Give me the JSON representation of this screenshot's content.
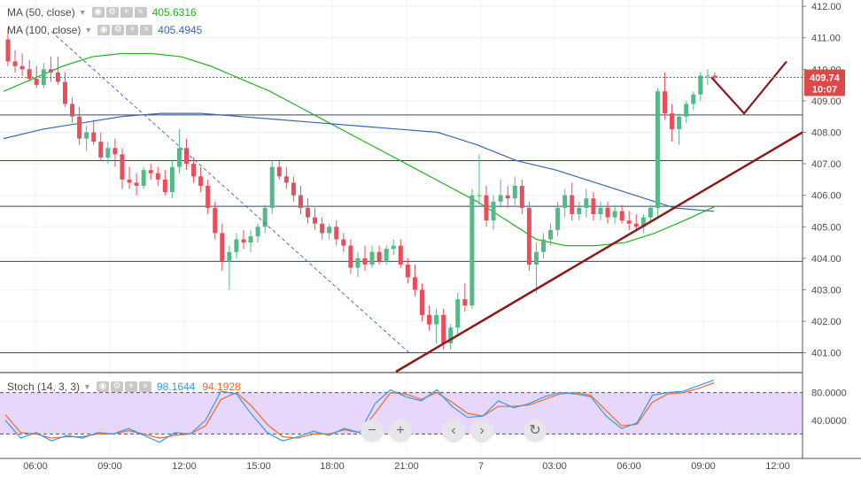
{
  "legends": {
    "ma50": {
      "label": "MA (50, close)",
      "value": "405.6316",
      "color": "#22b222"
    },
    "ma100": {
      "label": "MA (100, close)",
      "value": "405.4945",
      "color": "#3a66b0"
    },
    "stoch": {
      "label": "Stoch (14, 3, 3)",
      "k_value": "98.1644",
      "d_value": "94.1928",
      "k_color": "#3399ee",
      "d_color": "#f06a2a"
    }
  },
  "current_price": {
    "value": "409.74",
    "countdown": "10:07",
    "color": "#e04848"
  },
  "colors": {
    "up": "#53b987",
    "down": "#eb4d5c",
    "stoch_band": "#e7d7fb",
    "trend": "#8b1a1a"
  },
  "navigation": {
    "zoom_out_icon": "minus-icon",
    "zoom_in_icon": "plus-icon",
    "scroll_left_icon": "chevron-left-icon",
    "scroll_right_icon": "chevron-right-icon",
    "reset_icon": "reset-icon"
  },
  "chart_data": {
    "type": "candlestick",
    "price_axis": {
      "ylim": [
        400.4,
        412.2
      ],
      "ticks": [
        "401.00",
        "402.00",
        "403.00",
        "404.00",
        "405.00",
        "406.00",
        "407.00",
        "408.00",
        "409.00",
        "410.00",
        "411.00",
        "412.00"
      ]
    },
    "stoch_axis": {
      "ylim": [
        0,
        100
      ],
      "ticks": [
        "40.0000",
        "80.0000"
      ],
      "upper_band": 80,
      "lower_band": 20
    },
    "time_axis": {
      "ticks": [
        "06:00",
        "09:00",
        "12:00",
        "15:00",
        "18:00",
        "21:00",
        "7",
        "03:00",
        "06:00",
        "09:00",
        "12:00"
      ]
    },
    "horizontal_levels": [
      408.55,
      407.1,
      405.65,
      403.9,
      401.0
    ],
    "candles": [
      [
        410.95,
        411.3,
        410.1,
        410.25
      ],
      [
        410.25,
        410.6,
        409.9,
        410.1
      ],
      [
        410.1,
        410.5,
        409.8,
        410.0
      ],
      [
        410.0,
        410.3,
        409.6,
        409.7
      ],
      [
        409.7,
        410.1,
        409.4,
        409.5
      ],
      [
        409.5,
        410.2,
        409.4,
        410.0
      ],
      [
        410.0,
        410.4,
        409.6,
        409.9
      ],
      [
        409.9,
        410.4,
        409.5,
        409.6
      ],
      [
        409.6,
        409.9,
        408.8,
        408.9
      ],
      [
        408.9,
        409.1,
        408.3,
        408.5
      ],
      [
        408.5,
        408.8,
        407.6,
        407.8
      ],
      [
        407.8,
        408.2,
        407.4,
        408.0
      ],
      [
        408.0,
        408.4,
        407.6,
        407.7
      ],
      [
        407.7,
        408.0,
        407.1,
        407.2
      ],
      [
        407.2,
        407.7,
        407.0,
        407.5
      ],
      [
        407.5,
        407.8,
        406.9,
        407.3
      ],
      [
        407.3,
        407.5,
        406.2,
        406.5
      ],
      [
        406.5,
        406.9,
        406.2,
        406.4
      ],
      [
        406.4,
        406.7,
        406.0,
        406.3
      ],
      [
        406.3,
        406.9,
        406.2,
        406.8
      ],
      [
        406.8,
        407.0,
        406.5,
        406.7
      ],
      [
        406.7,
        406.9,
        406.3,
        406.5
      ],
      [
        406.5,
        406.8,
        406.0,
        406.1
      ],
      [
        406.1,
        407.1,
        405.9,
        406.9
      ],
      [
        406.9,
        408.1,
        406.7,
        407.5
      ],
      [
        407.5,
        407.8,
        406.8,
        407.0
      ],
      [
        407.0,
        407.2,
        406.4,
        406.6
      ],
      [
        406.6,
        406.9,
        406.1,
        406.3
      ],
      [
        406.3,
        406.5,
        405.4,
        405.6
      ],
      [
        405.6,
        405.8,
        404.6,
        404.8
      ],
      [
        404.8,
        405.1,
        403.6,
        403.9
      ],
      [
        403.9,
        404.4,
        403.0,
        404.2
      ],
      [
        404.2,
        404.8,
        404.0,
        404.6
      ],
      [
        404.6,
        404.9,
        404.3,
        404.5
      ],
      [
        404.5,
        404.9,
        404.2,
        404.7
      ],
      [
        404.7,
        405.1,
        404.5,
        405.0
      ],
      [
        405.0,
        405.7,
        404.8,
        405.6
      ],
      [
        405.6,
        407.1,
        405.4,
        406.9
      ],
      [
        406.9,
        407.1,
        406.5,
        406.6
      ],
      [
        406.6,
        406.9,
        406.2,
        406.4
      ],
      [
        406.4,
        406.6,
        405.8,
        406.0
      ],
      [
        406.0,
        406.3,
        405.4,
        405.6
      ],
      [
        405.6,
        405.9,
        405.1,
        405.3
      ],
      [
        405.3,
        405.6,
        404.9,
        405.1
      ],
      [
        405.1,
        405.3,
        404.6,
        404.8
      ],
      [
        404.8,
        405.1,
        404.6,
        405.0
      ],
      [
        405.0,
        405.2,
        404.4,
        404.6
      ],
      [
        404.6,
        404.8,
        404.2,
        404.4
      ],
      [
        404.4,
        404.6,
        403.5,
        403.7
      ],
      [
        403.7,
        404.2,
        403.4,
        404.0
      ],
      [
        404.0,
        404.4,
        403.6,
        403.8
      ],
      [
        403.8,
        404.4,
        403.7,
        404.2
      ],
      [
        404.2,
        404.4,
        403.8,
        403.9
      ],
      [
        403.9,
        404.4,
        403.8,
        404.3
      ],
      [
        404.3,
        404.6,
        404.1,
        404.4
      ],
      [
        404.4,
        404.6,
        403.7,
        403.8
      ],
      [
        403.8,
        404.0,
        403.2,
        403.4
      ],
      [
        403.4,
        403.8,
        402.8,
        403.0
      ],
      [
        403.0,
        403.2,
        402.0,
        402.2
      ],
      [
        402.2,
        402.5,
        401.7,
        401.9
      ],
      [
        401.9,
        402.4,
        401.3,
        402.2
      ],
      [
        402.2,
        402.4,
        401.1,
        401.3
      ],
      [
        401.3,
        401.9,
        401.1,
        401.8
      ],
      [
        401.8,
        402.9,
        401.6,
        402.7
      ],
      [
        402.7,
        403.2,
        402.3,
        402.5
      ],
      [
        402.5,
        406.2,
        402.4,
        406.0
      ],
      [
        406.0,
        407.3,
        405.7,
        406.0
      ],
      [
        406.0,
        406.3,
        405.0,
        405.2
      ],
      [
        405.2,
        406.0,
        404.9,
        405.8
      ],
      [
        405.8,
        406.5,
        405.6,
        406.0
      ],
      [
        406.0,
        406.3,
        405.6,
        405.9
      ],
      [
        405.9,
        406.6,
        405.7,
        406.3
      ],
      [
        406.3,
        406.5,
        405.4,
        405.6
      ],
      [
        405.6,
        405.8,
        403.6,
        403.8
      ],
      [
        403.8,
        404.5,
        402.9,
        404.2
      ],
      [
        404.2,
        404.8,
        404.0,
        404.6
      ],
      [
        404.6,
        405.1,
        404.4,
        404.9
      ],
      [
        404.9,
        405.8,
        404.7,
        405.6
      ],
      [
        405.6,
        406.2,
        405.3,
        406.0
      ],
      [
        406.0,
        406.4,
        405.2,
        405.4
      ],
      [
        405.4,
        405.8,
        405.2,
        405.6
      ],
      [
        405.6,
        406.2,
        405.3,
        405.9
      ],
      [
        405.9,
        406.1,
        405.2,
        405.4
      ],
      [
        405.4,
        405.8,
        405.2,
        405.6
      ],
      [
        405.6,
        405.8,
        405.1,
        405.3
      ],
      [
        405.3,
        405.7,
        405.1,
        405.5
      ],
      [
        405.5,
        405.7,
        405.1,
        405.2
      ],
      [
        405.2,
        405.5,
        404.9,
        405.1
      ],
      [
        405.1,
        405.4,
        404.9,
        405.0
      ],
      [
        405.0,
        405.4,
        404.8,
        405.3
      ],
      [
        405.3,
        405.7,
        405.1,
        405.6
      ],
      [
        405.6,
        409.4,
        405.3,
        409.3
      ],
      [
        409.3,
        409.9,
        408.4,
        408.6
      ],
      [
        408.6,
        408.9,
        407.7,
        408.1
      ],
      [
        408.1,
        408.6,
        407.6,
        408.5
      ],
      [
        408.5,
        409.0,
        408.3,
        408.9
      ],
      [
        408.9,
        409.3,
        408.7,
        409.2
      ],
      [
        409.2,
        409.9,
        409.0,
        409.8
      ],
      [
        409.8,
        410.0,
        409.5,
        409.8
      ],
      [
        409.8,
        409.9,
        409.6,
        409.74
      ]
    ],
    "series": [
      {
        "name": "MA (50, close)",
        "values": [
          409.3,
          409.7,
          410.1,
          410.4,
          410.5,
          410.5,
          410.4,
          410.1,
          409.7,
          409.3,
          408.8,
          408.3,
          407.8,
          407.3,
          406.8,
          406.3,
          405.8,
          405.2,
          404.6,
          404.4,
          404.4,
          404.5,
          404.8,
          405.2,
          405.63
        ]
      },
      {
        "name": "MA (100, close)",
        "values": [
          407.8,
          408.1,
          408.3,
          408.5,
          408.6,
          408.6,
          408.5,
          408.4,
          408.3,
          408.2,
          408.1,
          408.0,
          407.6,
          407.1,
          406.8,
          406.4,
          406.0,
          405.6,
          405.49
        ]
      }
    ],
    "stoch_series": [
      {
        "name": "%K",
        "values": [
          40,
          14,
          22,
          10,
          18,
          14,
          22,
          20,
          28,
          18,
          8,
          22,
          20,
          40,
          82,
          78,
          48,
          22,
          10,
          16,
          24,
          18,
          28,
          22,
          64,
          84,
          74,
          68,
          84,
          60,
          44,
          46,
          68,
          58,
          64,
          74,
          80,
          78,
          74,
          46,
          28,
          36,
          76,
          80,
          82,
          90,
          98.16
        ]
      },
      {
        "name": "%D",
        "values": [
          48,
          22,
          20,
          14,
          16,
          16,
          20,
          20,
          25,
          20,
          14,
          18,
          20,
          32,
          70,
          80,
          60,
          34,
          16,
          14,
          20,
          20,
          26,
          22,
          50,
          80,
          78,
          70,
          80,
          66,
          50,
          46,
          60,
          60,
          62,
          70,
          78,
          80,
          76,
          54,
          32,
          34,
          66,
          78,
          80,
          86,
          94.19
        ]
      }
    ],
    "trendline": {
      "from": [
        "day 6, 21:30",
        401.1
      ],
      "to": [
        "day 7, 12:15",
        408.0
      ]
    },
    "dashed_channel": {
      "from": [
        "day 6, 06:00",
        411.2
      ],
      "to": [
        "day 6, 21:00",
        401.0
      ]
    },
    "projection_path": [
      409.75,
      408.6,
      410.25
    ]
  }
}
